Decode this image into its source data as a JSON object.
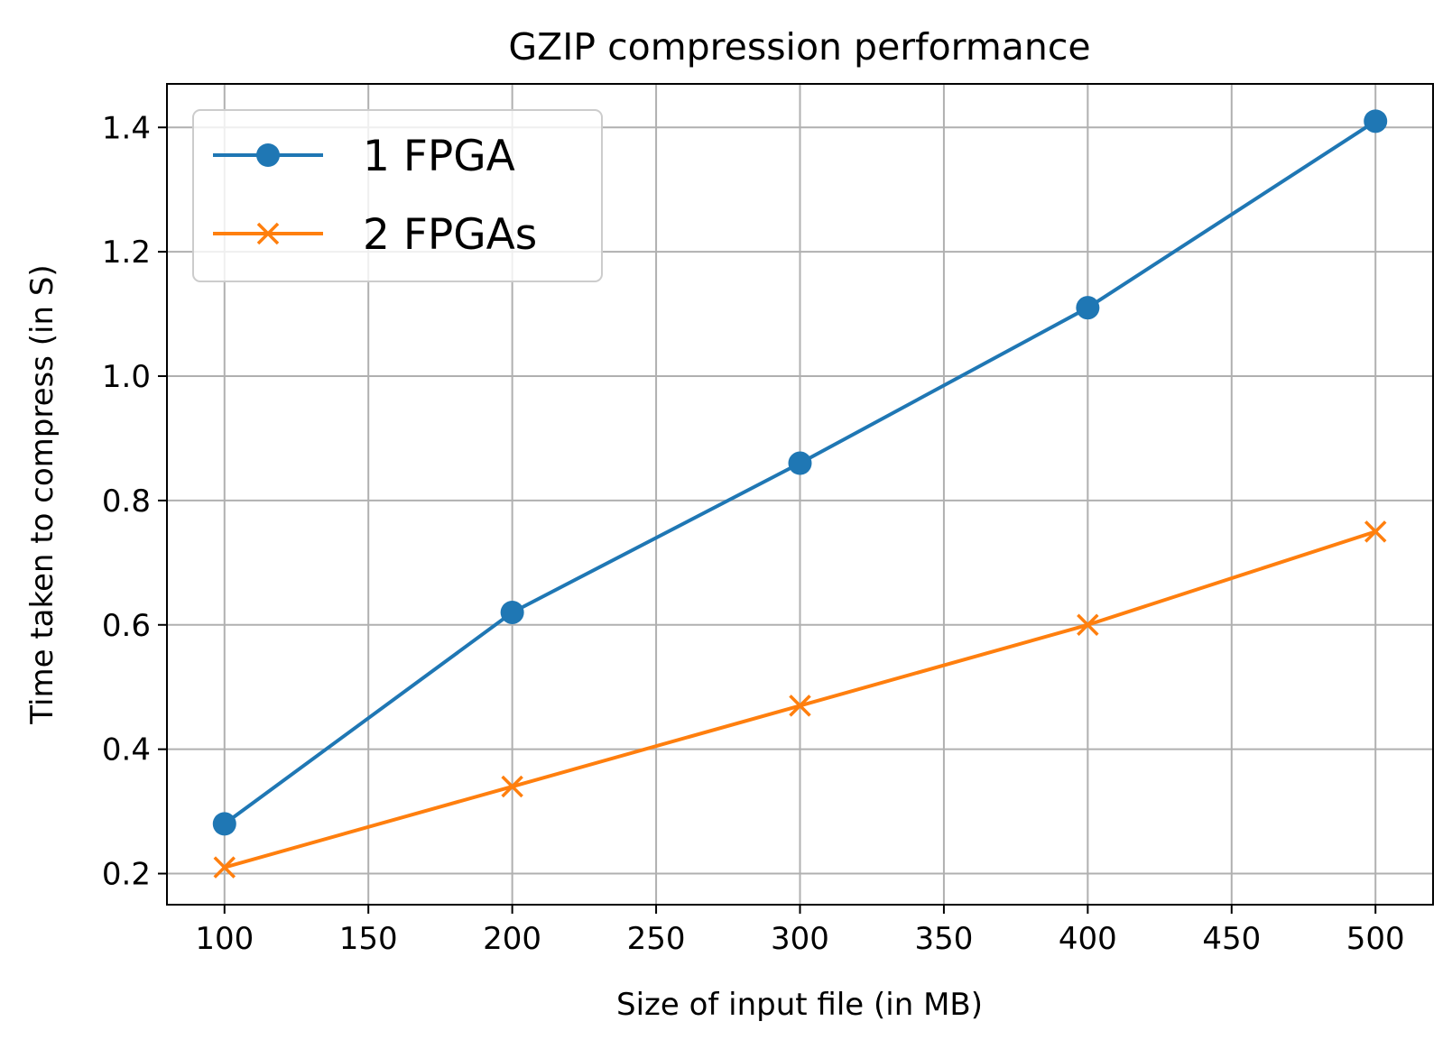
{
  "chart_data": {
    "type": "line",
    "title": "GZIP compression performance",
    "xlabel": "Size of input file (in MB)",
    "ylabel": "Time taken to compress (in S)",
    "x": [
      100,
      200,
      300,
      400,
      500
    ],
    "xlim": [
      80,
      520
    ],
    "ylim": [
      0.15,
      1.47
    ],
    "xticks": [
      100,
      150,
      200,
      250,
      300,
      350,
      400,
      450,
      500
    ],
    "yticks": [
      0.2,
      0.4,
      0.6,
      0.8,
      1.0,
      1.2,
      1.4
    ],
    "xtick_labels": [
      "100",
      "150",
      "200",
      "250",
      "300",
      "350",
      "400",
      "450",
      "500"
    ],
    "ytick_labels": [
      "0.2",
      "0.4",
      "0.6",
      "0.8",
      "1.0",
      "1.2",
      "1.4"
    ],
    "grid": true,
    "legend_position": "top-left",
    "series": [
      {
        "name": "1 FPGA",
        "values": [
          0.28,
          0.62,
          0.86,
          1.11,
          1.41
        ],
        "color": "#1f77b4",
        "marker": "circle"
      },
      {
        "name": "2 FPGAs",
        "values": [
          0.21,
          0.34,
          0.47,
          0.6,
          0.75
        ],
        "color": "#ff7f0e",
        "marker": "x"
      }
    ]
  }
}
